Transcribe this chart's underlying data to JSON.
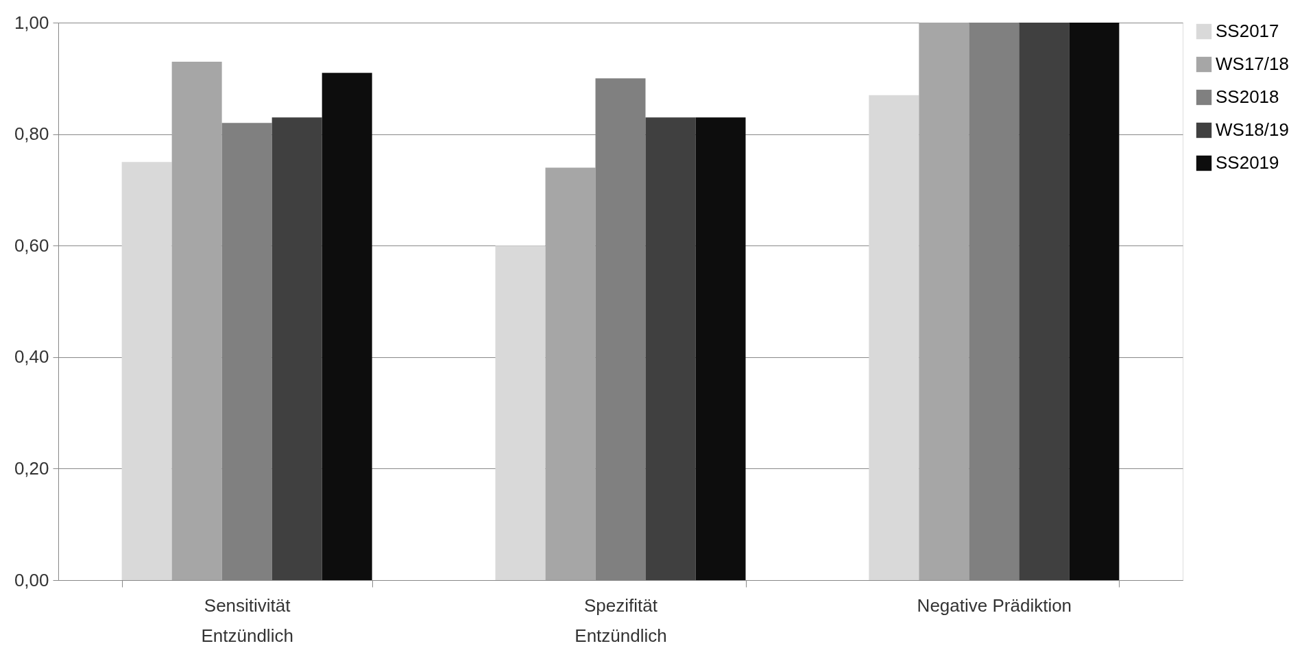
{
  "chart_data": {
    "type": "bar",
    "categories": [
      "Sensitivität\nEntzündlich",
      "Spezifität\nEntzündlich",
      "Negative Prädiktion"
    ],
    "series": [
      {
        "name": "SS2017",
        "color": "#d9d9d9",
        "values": [
          0.75,
          0.6,
          0.87
        ]
      },
      {
        "name": "WS17/18",
        "color": "#a6a6a6",
        "values": [
          0.93,
          0.74,
          1.0
        ]
      },
      {
        "name": "SS2018",
        "color": "#808080",
        "values": [
          0.82,
          0.9,
          1.0
        ]
      },
      {
        "name": "WS18/19",
        "color": "#404040",
        "values": [
          0.83,
          0.83,
          1.0
        ]
      },
      {
        "name": "SS2019",
        "color": "#0d0d0d",
        "values": [
          0.91,
          0.83,
          1.0
        ]
      }
    ],
    "ylim": [
      0,
      1
    ],
    "yticks": [
      {
        "value": 0,
        "label": "0,00"
      },
      {
        "value": 0.2,
        "label": "0,20"
      },
      {
        "value": 0.4,
        "label": "0,40"
      },
      {
        "value": 0.6,
        "label": "0,60"
      },
      {
        "value": 0.8,
        "label": "0,80"
      },
      {
        "value": 1,
        "label": "1,00"
      }
    ],
    "grid": "y",
    "legend": "right"
  }
}
